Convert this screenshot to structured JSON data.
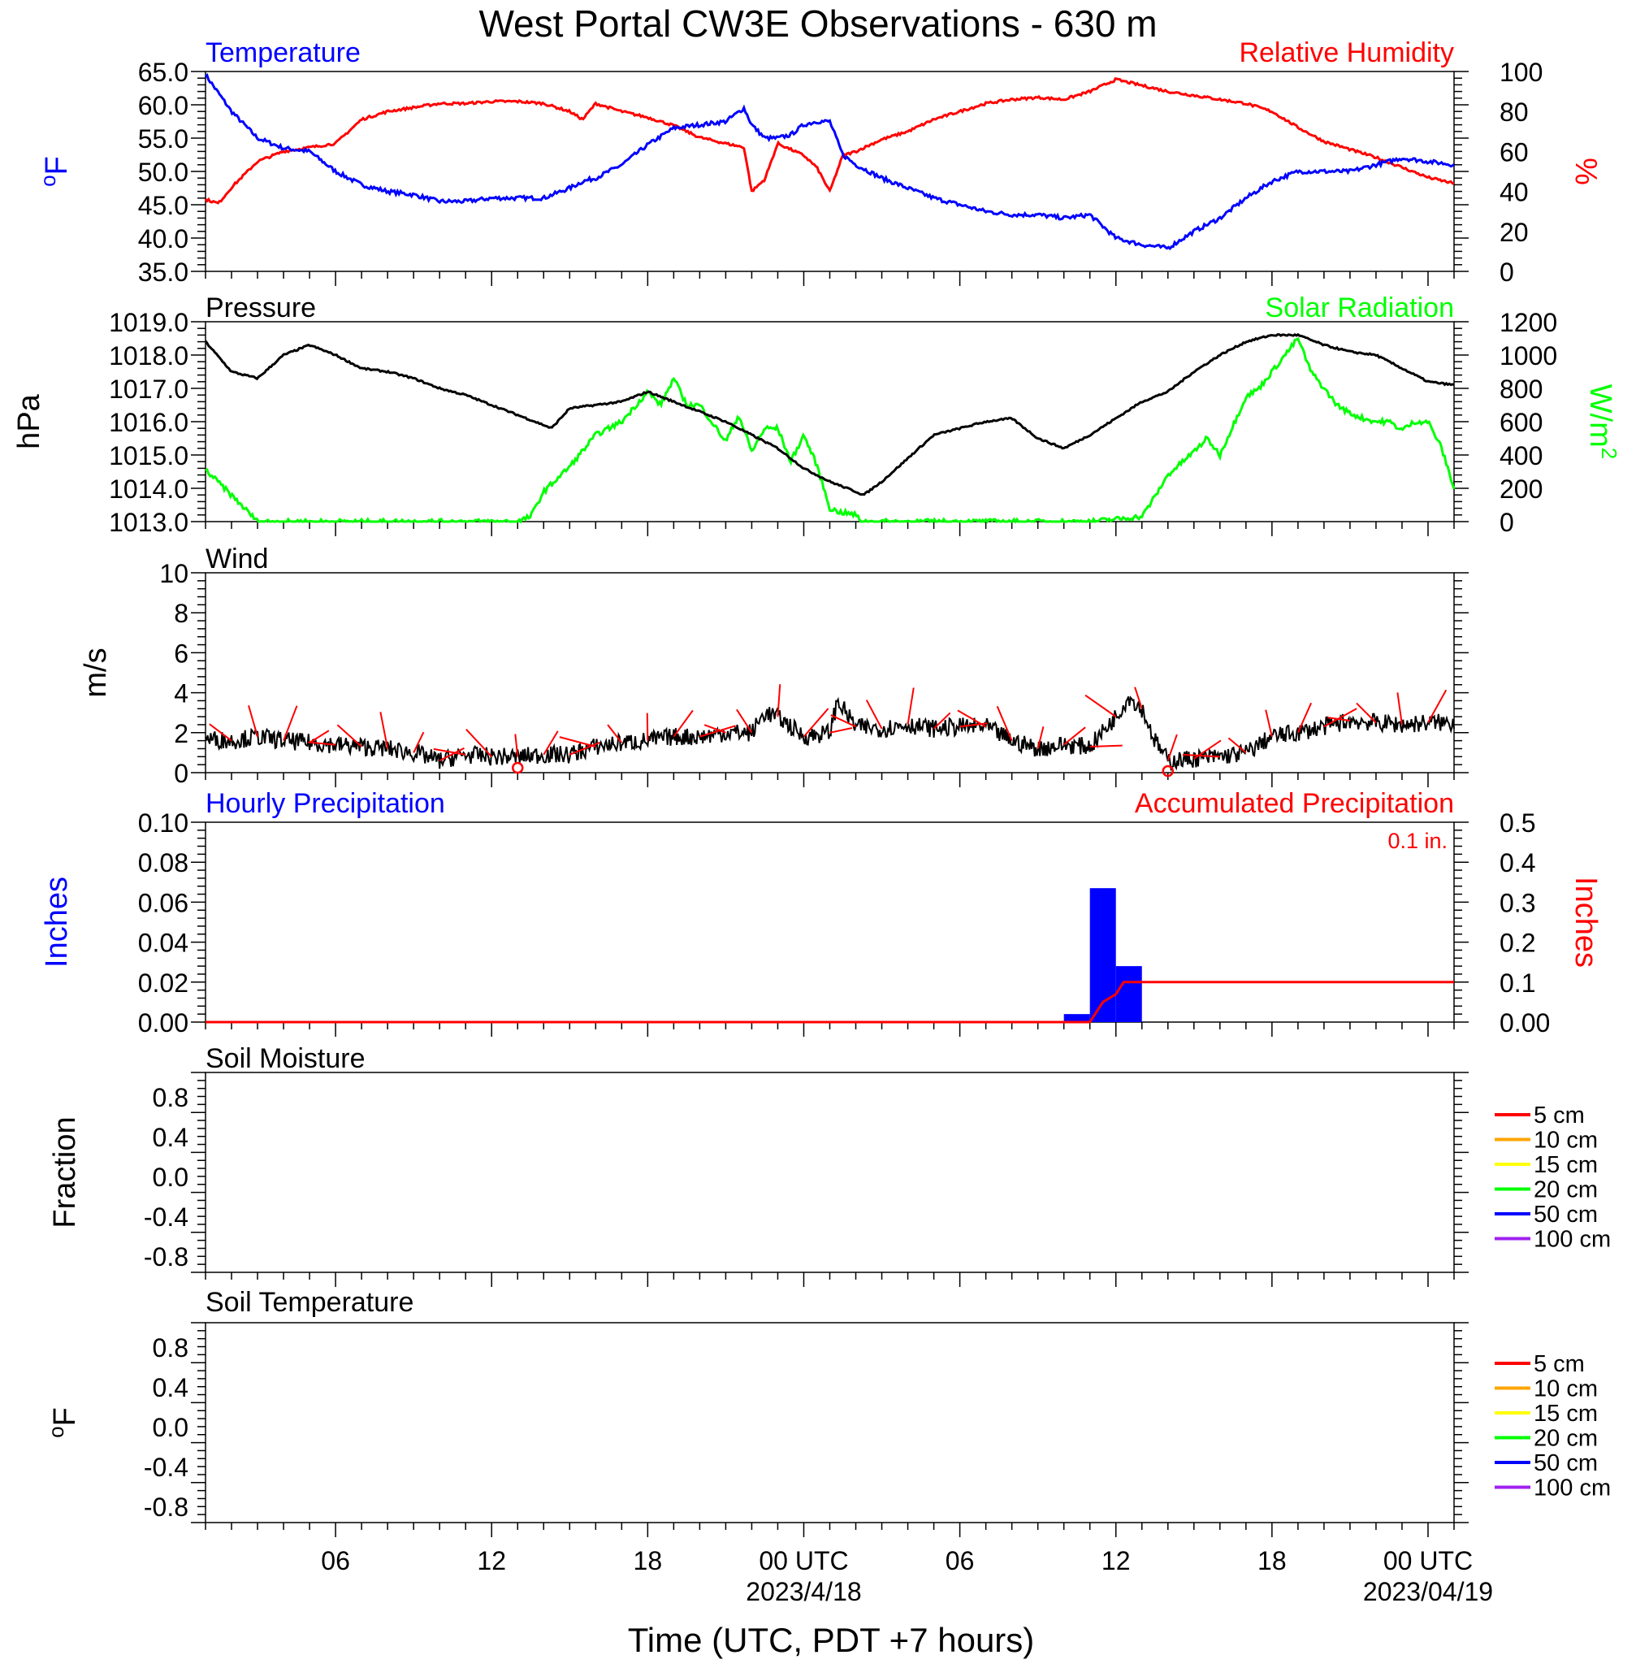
{
  "title": "West Portal CW3E Observations - 630 m",
  "x_axis": {
    "label": "Time (UTC, PDT +7 hours)",
    "range_hours": [
      0,
      48
    ],
    "ticks": [
      {
        "hour": 5,
        "label": "06"
      },
      {
        "hour": 11,
        "label": "12"
      },
      {
        "hour": 17,
        "label": "18"
      },
      {
        "hour": 23,
        "label": "00 UTC",
        "date": "2023/4/18"
      },
      {
        "hour": 29,
        "label": "06"
      },
      {
        "hour": 35,
        "label": "12"
      },
      {
        "hour": 41,
        "label": "18"
      },
      {
        "hour": 47,
        "label": "00 UTC",
        "date": "2023/04/19"
      }
    ]
  },
  "colors": {
    "temperature": "#0000ff",
    "humidity": "#ff0000",
    "pressure": "#000000",
    "solar": "#00ff00",
    "wind": "#000000",
    "barb": "#ff0000",
    "hourly_precip": "#0000ff",
    "accum_precip": "#ff0000",
    "soil_5": "#ff0000",
    "soil_10": "#ffa500",
    "soil_15": "#ffff00",
    "soil_20": "#00ff00",
    "soil_50": "#0000ff",
    "soil_100": "#a020f0"
  },
  "panels": {
    "temperature": {
      "left_title": "Temperature",
      "right_title": "Relative Humidity",
      "left_unit": "oF",
      "right_unit": "%",
      "left_ticks": [
        "65.0",
        "60.0",
        "55.0",
        "50.0",
        "45.0",
        "40.0",
        "35.0"
      ],
      "right_ticks": [
        "100",
        "80",
        "60",
        "40",
        "20",
        "0"
      ]
    },
    "pressure": {
      "left_title": "Pressure",
      "right_title": "Solar Radiation",
      "left_unit": "hPa",
      "right_unit": "W/m2",
      "left_ticks": [
        "1019.0",
        "1018.0",
        "1017.0",
        "1016.0",
        "1015.0",
        "1014.0",
        "1013.0"
      ],
      "right_ticks": [
        "1200",
        "1000",
        "800",
        "600",
        "400",
        "200",
        "0"
      ]
    },
    "wind": {
      "left_title": "Wind",
      "left_unit": "m/s",
      "left_ticks": [
        "10",
        "8",
        "6",
        "4",
        "2",
        "0"
      ]
    },
    "precip": {
      "left_title": "Hourly Precipitation",
      "right_title": "Accumulated Precipitation",
      "total_note": "0.1 in.",
      "left_unit": "Inches",
      "right_unit": "Inches",
      "left_ticks": [
        "0.10",
        "0.08",
        "0.06",
        "0.04",
        "0.02",
        "0.00"
      ],
      "right_ticks": [
        "0.5",
        "0.4",
        "0.3",
        "0.2",
        "0.1",
        "0.00"
      ]
    },
    "soil_moisture": {
      "left_title": "Soil Moisture",
      "left_unit": "Fraction",
      "left_ticks": [
        "0.8",
        "0.4",
        "0.0",
        "-0.4",
        "-0.8"
      ]
    },
    "soil_temperature": {
      "left_title": "Soil Temperature",
      "left_unit": "oF",
      "left_ticks": [
        "0.8",
        "0.4",
        "0.0",
        "-0.4",
        "-0.8"
      ]
    },
    "soil_legend": [
      "5 cm",
      "10 cm",
      "15 cm",
      "20 cm",
      "50 cm",
      "100 cm"
    ]
  },
  "chart_data": [
    {
      "type": "line",
      "title": "Temperature",
      "ylabel": "oF",
      "ylim": [
        35,
        65
      ],
      "x_unit": "hours since 2023-04-17 01 UTC",
      "series": [
        {
          "name": "Temperature",
          "axis": "left",
          "x": [
            0,
            1,
            2,
            3,
            4,
            5,
            6,
            7,
            8,
            9,
            10,
            11,
            12,
            13,
            14,
            14.5,
            15,
            16,
            17,
            18,
            19,
            20,
            20.7,
            21,
            21.5,
            22,
            22.5,
            23,
            23.5,
            24,
            24.5,
            25,
            26,
            27,
            28,
            29,
            30,
            31,
            32,
            33,
            34,
            35,
            36,
            37,
            38,
            39,
            40,
            41,
            42,
            43,
            44,
            45,
            46,
            47,
            48
          ],
          "y": [
            64.5,
            59,
            55,
            53.5,
            53,
            50,
            48,
            47,
            46.5,
            45.5,
            45.5,
            46,
            46,
            46,
            47.5,
            48.5,
            49,
            51,
            54,
            56.5,
            57,
            57.5,
            59.5,
            57,
            55,
            55,
            55.5,
            57,
            57.5,
            57.5,
            52.5,
            51,
            49,
            47.5,
            46,
            45,
            44,
            43.5,
            43.5,
            43,
            43.5,
            40,
            39,
            38.5,
            41,
            43,
            46,
            48.5,
            50,
            50,
            50,
            51,
            52,
            51.5,
            51
          ]
        },
        {
          "name": "Relative Humidity",
          "axis": "right",
          "ylim": [
            0,
            100
          ],
          "x": [
            0,
            0.5,
            1,
            2,
            3,
            4,
            5,
            6,
            7,
            8,
            9,
            10,
            11,
            12,
            13,
            14,
            14.5,
            15,
            16,
            17,
            18,
            19,
            20,
            20.7,
            21,
            21.5,
            22,
            23,
            23.5,
            24,
            24.5,
            25,
            26,
            27,
            28,
            29,
            30,
            31,
            32,
            33,
            34,
            35,
            36,
            37,
            38,
            39,
            40,
            41,
            42,
            43,
            44,
            45,
            46,
            47,
            48
          ],
          "y": [
            36,
            34,
            42,
            55,
            60,
            62,
            64,
            76,
            80,
            82,
            84,
            84,
            85,
            85,
            84,
            80,
            76,
            84,
            80,
            77,
            73,
            67,
            64,
            62,
            40,
            46,
            64,
            58,
            52,
            40,
            58,
            60,
            66,
            70,
            76,
            80,
            84,
            86,
            87,
            86,
            90,
            96,
            93,
            90,
            88,
            86,
            84,
            80,
            72,
            65,
            61,
            57,
            52,
            47,
            44
          ]
        }
      ]
    },
    {
      "type": "line",
      "title": "Pressure",
      "ylabel": "hPa",
      "ylim": [
        1013,
        1019
      ],
      "x_unit": "hours since 2023-04-17 01 UTC",
      "series": [
        {
          "name": "Pressure",
          "axis": "left",
          "x": [
            0,
            1,
            2,
            3,
            4,
            5,
            6,
            7,
            8,
            9,
            10,
            11,
            12,
            13,
            13.3,
            14,
            15,
            16,
            17,
            18,
            19,
            20,
            21,
            22,
            23,
            24,
            25,
            25.3,
            26,
            27,
            28,
            29,
            30,
            31,
            32,
            33,
            34,
            35,
            36,
            37,
            38,
            39,
            40,
            41,
            42,
            43,
            44,
            45,
            46,
            47,
            48
          ],
          "y": [
            1018.4,
            1017.5,
            1017.3,
            1018.0,
            1018.3,
            1018.0,
            1017.6,
            1017.5,
            1017.3,
            1017.0,
            1016.8,
            1016.5,
            1016.2,
            1015.9,
            1015.8,
            1016.4,
            1016.5,
            1016.6,
            1016.9,
            1016.6,
            1016.3,
            1016.0,
            1015.6,
            1015.2,
            1014.6,
            1014.2,
            1013.9,
            1013.8,
            1014.2,
            1014.9,
            1015.6,
            1015.8,
            1016.0,
            1016.1,
            1015.5,
            1015.2,
            1015.6,
            1016.1,
            1016.6,
            1016.9,
            1017.5,
            1018.0,
            1018.4,
            1018.6,
            1018.6,
            1018.3,
            1018.1,
            1018.0,
            1017.6,
            1017.2,
            1017.1
          ]
        },
        {
          "name": "Solar Radiation",
          "axis": "right",
          "ylim": [
            0,
            1200
          ],
          "x": [
            0,
            0.6,
            1.5,
            2,
            12,
            12.5,
            13,
            14,
            15,
            16,
            17,
            17.5,
            18,
            18.5,
            19,
            20,
            20.5,
            21,
            21.5,
            22,
            22.5,
            23,
            23.5,
            24,
            24.3,
            25,
            25.2,
            26,
            34,
            36,
            36.5,
            37,
            38,
            38.5,
            39,
            40,
            40.5,
            41,
            41.5,
            42,
            42.5,
            43,
            43.5,
            44,
            44.5,
            45,
            45.5,
            46,
            46.5,
            47,
            47.5,
            48
          ],
          "y": [
            310,
            220,
            80,
            0,
            0,
            30,
            180,
            330,
            520,
            600,
            780,
            700,
            860,
            700,
            700,
            480,
            640,
            420,
            560,
            560,
            360,
            520,
            340,
            80,
            60,
            40,
            0,
            0,
            0,
            30,
            150,
            280,
            420,
            500,
            400,
            750,
            800,
            900,
            1000,
            1100,
            900,
            800,
            700,
            650,
            620,
            600,
            600,
            550,
            600,
            600,
            450,
            200
          ]
        }
      ]
    },
    {
      "type": "line",
      "title": "Wind",
      "ylabel": "m/s",
      "ylim": [
        0,
        10
      ],
      "x_unit": "hours since 2023-04-17 01 UTC",
      "series": [
        {
          "name": "Wind",
          "x": [
            0,
            1,
            2,
            3,
            4,
            5,
            6,
            7,
            8,
            9,
            10,
            11,
            12,
            13,
            14,
            15,
            16,
            17,
            18,
            19,
            20,
            21,
            21.5,
            22,
            23,
            24,
            24.3,
            25,
            26,
            27,
            28,
            29,
            30,
            31,
            32,
            33,
            34,
            35,
            35.5,
            36,
            36.5,
            37,
            38,
            39,
            40,
            41,
            42,
            43,
            44,
            45,
            46,
            47,
            48
          ],
          "y": [
            1.7,
            1.6,
            1.8,
            1.6,
            1.5,
            1.4,
            1.3,
            1.2,
            1.0,
            0.6,
            0.9,
            0.8,
            0.8,
            0.9,
            0.9,
            1.3,
            1.5,
            1.6,
            1.8,
            1.8,
            2.0,
            2.0,
            3.0,
            2.8,
            1.8,
            2.0,
            3.6,
            2.3,
            2.2,
            2.4,
            2.2,
            2.3,
            2.3,
            1.6,
            1.2,
            1.4,
            1.3,
            2.8,
            3.8,
            3.2,
            1.6,
            0.6,
            0.7,
            0.8,
            1.0,
            1.8,
            2.0,
            2.3,
            2.6,
            2.5,
            2.4,
            2.5,
            2.5
          ]
        }
      ]
    },
    {
      "type": "bar",
      "title": "Hourly Precipitation",
      "ylabel": "Inches",
      "ylim": [
        0,
        0.1
      ],
      "x_unit": "hours since 2023-04-17 01 UTC",
      "bars": [
        {
          "x_start": 33,
          "x_end": 34,
          "value": 0.004
        },
        {
          "x_start": 34,
          "x_end": 35,
          "value": 0.067
        },
        {
          "x_start": 35,
          "x_end": 36,
          "value": 0.028
        }
      ],
      "accumulated": {
        "name": "Accumulated Precipitation",
        "ylim": [
          0,
          0.5
        ],
        "x": [
          0,
          34,
          34.5,
          35,
          35.3,
          48
        ],
        "y": [
          0,
          0,
          0.05,
          0.07,
          0.1,
          0.1
        ]
      }
    }
  ]
}
